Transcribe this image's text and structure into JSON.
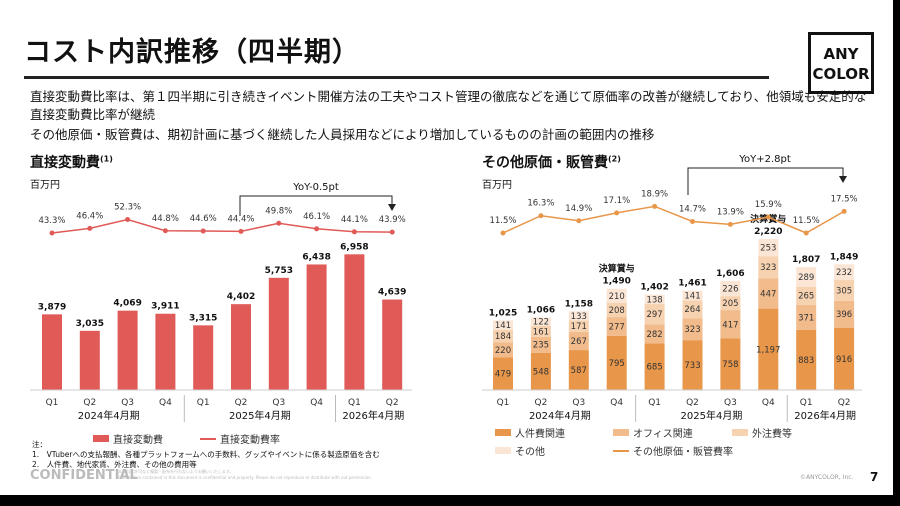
{
  "title": "コスト内訳推移（四半期）",
  "logo": {
    "line1": "ANY",
    "line2": "COLOR"
  },
  "description": [
    "直接変動費比率は、第１四半期に引き続きイベント開催方法の工夫やコスト管理の徹底などを通じて原価率の改善が継続しており、他領域も安定的な直接変動費比率が継続",
    "その他原価・販管費は、期初計画に基づく継続した人員採用などにより増加しているものの計画の範囲内の推移"
  ],
  "left_section": {
    "title": "直接変動費",
    "sup": "(1)",
    "unit": "百万円",
    "yoy": "YoY-0.5pt",
    "legend": [
      "直接変動費",
      "直接変動費率"
    ]
  },
  "right_section": {
    "title": "その他原価・販管費",
    "sup": "(2)",
    "unit": "百万円",
    "yoy": "YoY+2.8pt",
    "legend": [
      "人件費関連",
      "オフィス関連",
      "外注費等",
      "その他",
      "その他原価・販管費率"
    ]
  },
  "notes": {
    "head": "注：",
    "items": [
      "1.　VTuberへの支払報酬、各種プラットフォームへの手数料、グッズやイベントに係る製造原価を含む",
      "2.　人件費、地代家賃、外注費、その他の費用等"
    ]
  },
  "footer": {
    "confidential": "CONFIDENTIAL",
    "disclaimer1": "本資料は許可なく複製・配布を行わないようお願いいたします。",
    "disclaimer2": "Information contained in this document is confidential and property. Please do not reproduce or distribute with out permission.",
    "copyright": "©ANYCOLOR, Inc.",
    "page": "7"
  },
  "chart_data": [
    {
      "type": "bar",
      "title": "直接変動費",
      "ylabel": "百万円",
      "categories": [
        "Q1",
        "Q2",
        "Q3",
        "Q4",
        "Q1",
        "Q2",
        "Q3",
        "Q4",
        "Q1",
        "Q2"
      ],
      "groups": [
        "2024年4月期",
        "2025年4月期",
        "2026年4月期"
      ],
      "series": [
        {
          "name": "直接変動費",
          "values": [
            3879,
            3035,
            4069,
            3911,
            3315,
            4402,
            5753,
            6438,
            6958,
            4639
          ],
          "color": "#e05a57"
        },
        {
          "name": "直接変動費率",
          "type": "line",
          "values": [
            43.3,
            46.4,
            52.3,
            44.8,
            44.6,
            44.4,
            49.8,
            46.1,
            44.1,
            43.9
          ],
          "color": "#e05a57"
        }
      ]
    },
    {
      "type": "bar",
      "stacked": true,
      "title": "その他原価・販管費",
      "ylabel": "百万円",
      "categories": [
        "Q1",
        "Q2",
        "Q3",
        "Q4",
        "Q1",
        "Q2",
        "Q3",
        "Q4",
        "Q1",
        "Q2"
      ],
      "groups": [
        "2024年4月期",
        "2025年4月期",
        "2026年4月期"
      ],
      "series": [
        {
          "name": "人件費関連",
          "values": [
            479,
            548,
            587,
            795,
            685,
            733,
            758,
            1197,
            883,
            916
          ],
          "color": "#e8964a"
        },
        {
          "name": "オフィス関連",
          "values": [
            220,
            235,
            267,
            277,
            282,
            323,
            417,
            447,
            371,
            396
          ],
          "color": "#f1bb8c"
        },
        {
          "name": "外注費等",
          "values": [
            184,
            161,
            171,
            208,
            297,
            264,
            205,
            323,
            265,
            305
          ],
          "color": "#f6d2b0"
        },
        {
          "name": "その他",
          "values": [
            141,
            122,
            133,
            210,
            138,
            141,
            226,
            253,
            289,
            232
          ],
          "color": "#fbe6d6"
        },
        {
          "name": "その他原価・販管費率",
          "type": "line",
          "values": [
            11.5,
            16.3,
            14.9,
            17.1,
            18.9,
            14.7,
            13.9,
            15.9,
            11.5,
            17.5
          ],
          "color": "#e8964a"
        }
      ],
      "totals": [
        "1,025",
        "1,066",
        "1,158",
        "1,490",
        "1,402",
        "1,461",
        "1,606",
        "2,220",
        "1,807",
        "1,849"
      ],
      "annotations": [
        {
          "index": 3,
          "text": "決算賞与"
        },
        {
          "index": 7,
          "text": "決算賞与"
        }
      ]
    }
  ]
}
